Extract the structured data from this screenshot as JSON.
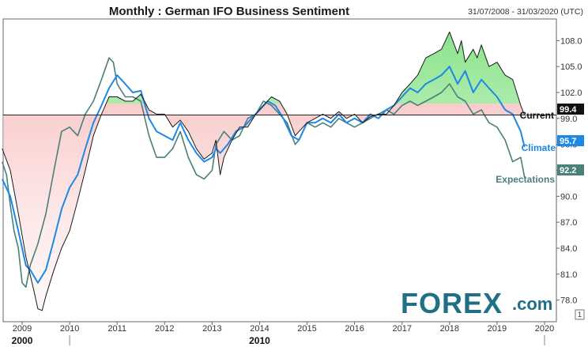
{
  "header": {
    "title": "Monthly : German IFO Business Sentiment",
    "date_range": "31/07/2008 - 31/03/2020 (UTC)"
  },
  "chart_data": {
    "type": "line",
    "title": "Monthly : German IFO Business Sentiment",
    "xlabel": "",
    "ylabel": "",
    "xlim": [
      2008.6,
      2020.25
    ],
    "ylim": [
      75.5,
      110.5
    ],
    "baseline": 99.4,
    "yticks": [
      78.0,
      81.0,
      84.0,
      87.0,
      90.0,
      93.0,
      96.0,
      99.0,
      102.0,
      105.0,
      108.0
    ],
    "ytick_labels": [
      "78.0",
      "81.0",
      "84.0",
      "87.0",
      "90.0",
      "93.0",
      "96.0",
      "99.0",
      "102.0",
      "105.0",
      "108.0"
    ],
    "xticks": [
      2009,
      2010,
      2011,
      2012,
      2013,
      2014,
      2015,
      2016,
      2017,
      2018,
      2019,
      2020
    ],
    "xtick_labels": [
      "2009",
      "2010",
      "2011",
      "2012",
      "2013",
      "2014",
      "2015",
      "2016",
      "2017",
      "2018",
      "2019",
      "2020"
    ],
    "decade_labels": [
      {
        "label": "2000",
        "x": 2009.0
      },
      {
        "label": "2010",
        "x": 2014.0
      }
    ],
    "series": [
      {
        "name": "Current",
        "color": "#1a1a1a",
        "label": "Current",
        "last_value": "99.4",
        "points": [
          [
            2008.58,
            95.5
          ],
          [
            2008.75,
            93.0
          ],
          [
            2008.92,
            88.0
          ],
          [
            2009.08,
            83.0
          ],
          [
            2009.25,
            79.0
          ],
          [
            2009.33,
            77.0
          ],
          [
            2009.42,
            76.8
          ],
          [
            2009.5,
            78.5
          ],
          [
            2009.67,
            81.5
          ],
          [
            2009.83,
            84.0
          ],
          [
            2010.0,
            86.0
          ],
          [
            2010.17,
            89.5
          ],
          [
            2010.33,
            93.0
          ],
          [
            2010.5,
            97.0
          ],
          [
            2010.67,
            99.5
          ],
          [
            2010.83,
            101.5
          ],
          [
            2011.0,
            101.5
          ],
          [
            2011.17,
            101.0
          ],
          [
            2011.33,
            101.0
          ],
          [
            2011.5,
            101.8
          ],
          [
            2011.67,
            100.0
          ],
          [
            2011.83,
            99.5
          ],
          [
            2012.0,
            99.5
          ],
          [
            2012.17,
            98.0
          ],
          [
            2012.33,
            98.8
          ],
          [
            2012.5,
            97.5
          ],
          [
            2012.67,
            95.5
          ],
          [
            2012.83,
            94.3
          ],
          [
            2013.0,
            95.0
          ],
          [
            2013.08,
            96.5
          ],
          [
            2013.17,
            92.5
          ],
          [
            2013.25,
            94.5
          ],
          [
            2013.42,
            96.5
          ],
          [
            2013.58,
            98.0
          ],
          [
            2013.75,
            98.0
          ],
          [
            2013.92,
            99.5
          ],
          [
            2014.08,
            100.5
          ],
          [
            2014.25,
            101.5
          ],
          [
            2014.42,
            101.0
          ],
          [
            2014.58,
            99.5
          ],
          [
            2014.75,
            97.0
          ],
          [
            2014.83,
            97.5
          ],
          [
            2015.0,
            98.5
          ],
          [
            2015.17,
            99.0
          ],
          [
            2015.33,
            99.5
          ],
          [
            2015.5,
            99.0
          ],
          [
            2015.67,
            99.8
          ],
          [
            2015.83,
            99.0
          ],
          [
            2016.0,
            99.5
          ],
          [
            2016.17,
            98.5
          ],
          [
            2016.33,
            99.2
          ],
          [
            2016.5,
            99.5
          ],
          [
            2016.67,
            99.5
          ],
          [
            2016.83,
            100.5
          ],
          [
            2017.0,
            102.0
          ],
          [
            2017.17,
            103.0
          ],
          [
            2017.33,
            104.0
          ],
          [
            2017.5,
            106.0
          ],
          [
            2017.67,
            106.5
          ],
          [
            2017.83,
            107.0
          ],
          [
            2018.0,
            109.0
          ],
          [
            2018.17,
            106.5
          ],
          [
            2018.25,
            108.0
          ],
          [
            2018.33,
            105.5
          ],
          [
            2018.5,
            107.0
          ],
          [
            2018.58,
            106.0
          ],
          [
            2018.67,
            107.5
          ],
          [
            2018.83,
            105.0
          ],
          [
            2019.0,
            105.5
          ],
          [
            2019.17,
            104.0
          ],
          [
            2019.33,
            103.5
          ],
          [
            2019.5,
            100.5
          ],
          [
            2019.58,
            99.4
          ]
        ]
      },
      {
        "name": "Climate",
        "color": "#1e88e5",
        "label": "Climate",
        "last_value": "95.7",
        "points": [
          [
            2008.58,
            92.0
          ],
          [
            2008.75,
            90.0
          ],
          [
            2008.92,
            86.0
          ],
          [
            2009.08,
            82.0
          ],
          [
            2009.17,
            81.5
          ],
          [
            2009.33,
            80.0
          ],
          [
            2009.5,
            81.5
          ],
          [
            2009.67,
            85.0
          ],
          [
            2009.83,
            88.5
          ],
          [
            2010.0,
            91.0
          ],
          [
            2010.17,
            92.5
          ],
          [
            2010.33,
            95.5
          ],
          [
            2010.5,
            98.5
          ],
          [
            2010.67,
            100.5
          ],
          [
            2010.83,
            102.5
          ],
          [
            2011.0,
            104.0
          ],
          [
            2011.17,
            103.0
          ],
          [
            2011.33,
            102.0
          ],
          [
            2011.5,
            102.2
          ],
          [
            2011.67,
            99.0
          ],
          [
            2011.83,
            97.5
          ],
          [
            2012.0,
            97.0
          ],
          [
            2012.17,
            96.5
          ],
          [
            2012.33,
            98.5
          ],
          [
            2012.5,
            96.5
          ],
          [
            2012.67,
            95.0
          ],
          [
            2012.83,
            94.0
          ],
          [
            2013.0,
            94.5
          ],
          [
            2013.08,
            95.5
          ],
          [
            2013.17,
            95.0
          ],
          [
            2013.33,
            96.0
          ],
          [
            2013.5,
            97.5
          ],
          [
            2013.67,
            98.0
          ],
          [
            2013.83,
            99.0
          ],
          [
            2014.0,
            100.0
          ],
          [
            2014.17,
            101.0
          ],
          [
            2014.33,
            100.5
          ],
          [
            2014.5,
            99.0
          ],
          [
            2014.67,
            97.0
          ],
          [
            2014.83,
            96.5
          ],
          [
            2015.0,
            98.5
          ],
          [
            2015.17,
            98.5
          ],
          [
            2015.33,
            99.0
          ],
          [
            2015.5,
            98.5
          ],
          [
            2015.67,
            99.5
          ],
          [
            2015.83,
            98.5
          ],
          [
            2016.0,
            99.0
          ],
          [
            2016.17,
            98.5
          ],
          [
            2016.33,
            99.5
          ],
          [
            2016.5,
            99.0
          ],
          [
            2016.67,
            100.0
          ],
          [
            2016.83,
            100.5
          ],
          [
            2017.0,
            101.5
          ],
          [
            2017.17,
            102.5
          ],
          [
            2017.33,
            102.0
          ],
          [
            2017.5,
            103.0
          ],
          [
            2017.67,
            103.5
          ],
          [
            2017.83,
            104.0
          ],
          [
            2018.0,
            105.0
          ],
          [
            2018.17,
            103.0
          ],
          [
            2018.33,
            104.5
          ],
          [
            2018.5,
            102.0
          ],
          [
            2018.67,
            103.5
          ],
          [
            2018.83,
            102.5
          ],
          [
            2019.0,
            101.5
          ],
          [
            2019.17,
            100.0
          ],
          [
            2019.33,
            99.5
          ],
          [
            2019.5,
            97.5
          ],
          [
            2019.58,
            95.7
          ]
        ]
      },
      {
        "name": "Expectations",
        "color": "#4a7f7a",
        "label": "Expectations",
        "last_value": "92.2",
        "points": [
          [
            2008.58,
            94.0
          ],
          [
            2008.67,
            92.5
          ],
          [
            2008.75,
            89.0
          ],
          [
            2008.83,
            86.0
          ],
          [
            2008.92,
            84.0
          ],
          [
            2009.0,
            80.0
          ],
          [
            2009.08,
            79.5
          ],
          [
            2009.17,
            82.0
          ],
          [
            2009.33,
            84.5
          ],
          [
            2009.5,
            88.0
          ],
          [
            2009.67,
            93.0
          ],
          [
            2009.83,
            97.5
          ],
          [
            2010.0,
            98.0
          ],
          [
            2010.17,
            97.0
          ],
          [
            2010.33,
            99.5
          ],
          [
            2010.5,
            101.0
          ],
          [
            2010.67,
            103.5
          ],
          [
            2010.83,
            106.0
          ],
          [
            2010.92,
            105.5
          ],
          [
            2011.0,
            103.0
          ],
          [
            2011.17,
            101.5
          ],
          [
            2011.33,
            101.5
          ],
          [
            2011.5,
            101.0
          ],
          [
            2011.67,
            97.0
          ],
          [
            2011.83,
            94.5
          ],
          [
            2012.0,
            94.5
          ],
          [
            2012.17,
            95.5
          ],
          [
            2012.33,
            97.5
          ],
          [
            2012.5,
            94.5
          ],
          [
            2012.67,
            92.5
          ],
          [
            2012.83,
            92.0
          ],
          [
            2013.0,
            93.0
          ],
          [
            2013.08,
            96.0
          ],
          [
            2013.25,
            97.5
          ],
          [
            2013.42,
            96.5
          ],
          [
            2013.58,
            97.0
          ],
          [
            2013.75,
            99.0
          ],
          [
            2013.92,
            99.5
          ],
          [
            2014.08,
            101.0
          ],
          [
            2014.25,
            100.5
          ],
          [
            2014.42,
            99.5
          ],
          [
            2014.58,
            98.5
          ],
          [
            2014.75,
            96.0
          ],
          [
            2014.83,
            96.5
          ],
          [
            2015.0,
            98.5
          ],
          [
            2015.17,
            98.0
          ],
          [
            2015.33,
            98.5
          ],
          [
            2015.5,
            98.0
          ],
          [
            2015.67,
            99.0
          ],
          [
            2015.83,
            98.5
          ],
          [
            2016.0,
            98.0
          ],
          [
            2016.17,
            98.5
          ],
          [
            2016.33,
            99.0
          ],
          [
            2016.5,
            99.5
          ],
          [
            2016.67,
            100.0
          ],
          [
            2016.83,
            99.5
          ],
          [
            2017.0,
            100.5
          ],
          [
            2017.17,
            101.0
          ],
          [
            2017.33,
            100.5
          ],
          [
            2017.5,
            101.0
          ],
          [
            2017.67,
            101.5
          ],
          [
            2017.83,
            102.0
          ],
          [
            2018.0,
            103.0
          ],
          [
            2018.17,
            101.5
          ],
          [
            2018.33,
            101.0
          ],
          [
            2018.5,
            99.5
          ],
          [
            2018.67,
            100.0
          ],
          [
            2018.83,
            98.5
          ],
          [
            2019.0,
            98.0
          ],
          [
            2019.17,
            96.5
          ],
          [
            2019.33,
            94.0
          ],
          [
            2019.5,
            94.5
          ],
          [
            2019.58,
            92.2
          ]
        ]
      }
    ]
  },
  "watermark": {
    "logo_text": "FOREX",
    "logo_suffix": ".com"
  },
  "corner_button": "1",
  "colors": {
    "fill_above": "#9ee89e",
    "fill_below": "#f7b4b4",
    "current_tag_bg": "#111111",
    "climate_tag_bg": "#1e88e5",
    "expectations_tag_bg": "#4a7f7a",
    "brand": "#1f6f86"
  }
}
